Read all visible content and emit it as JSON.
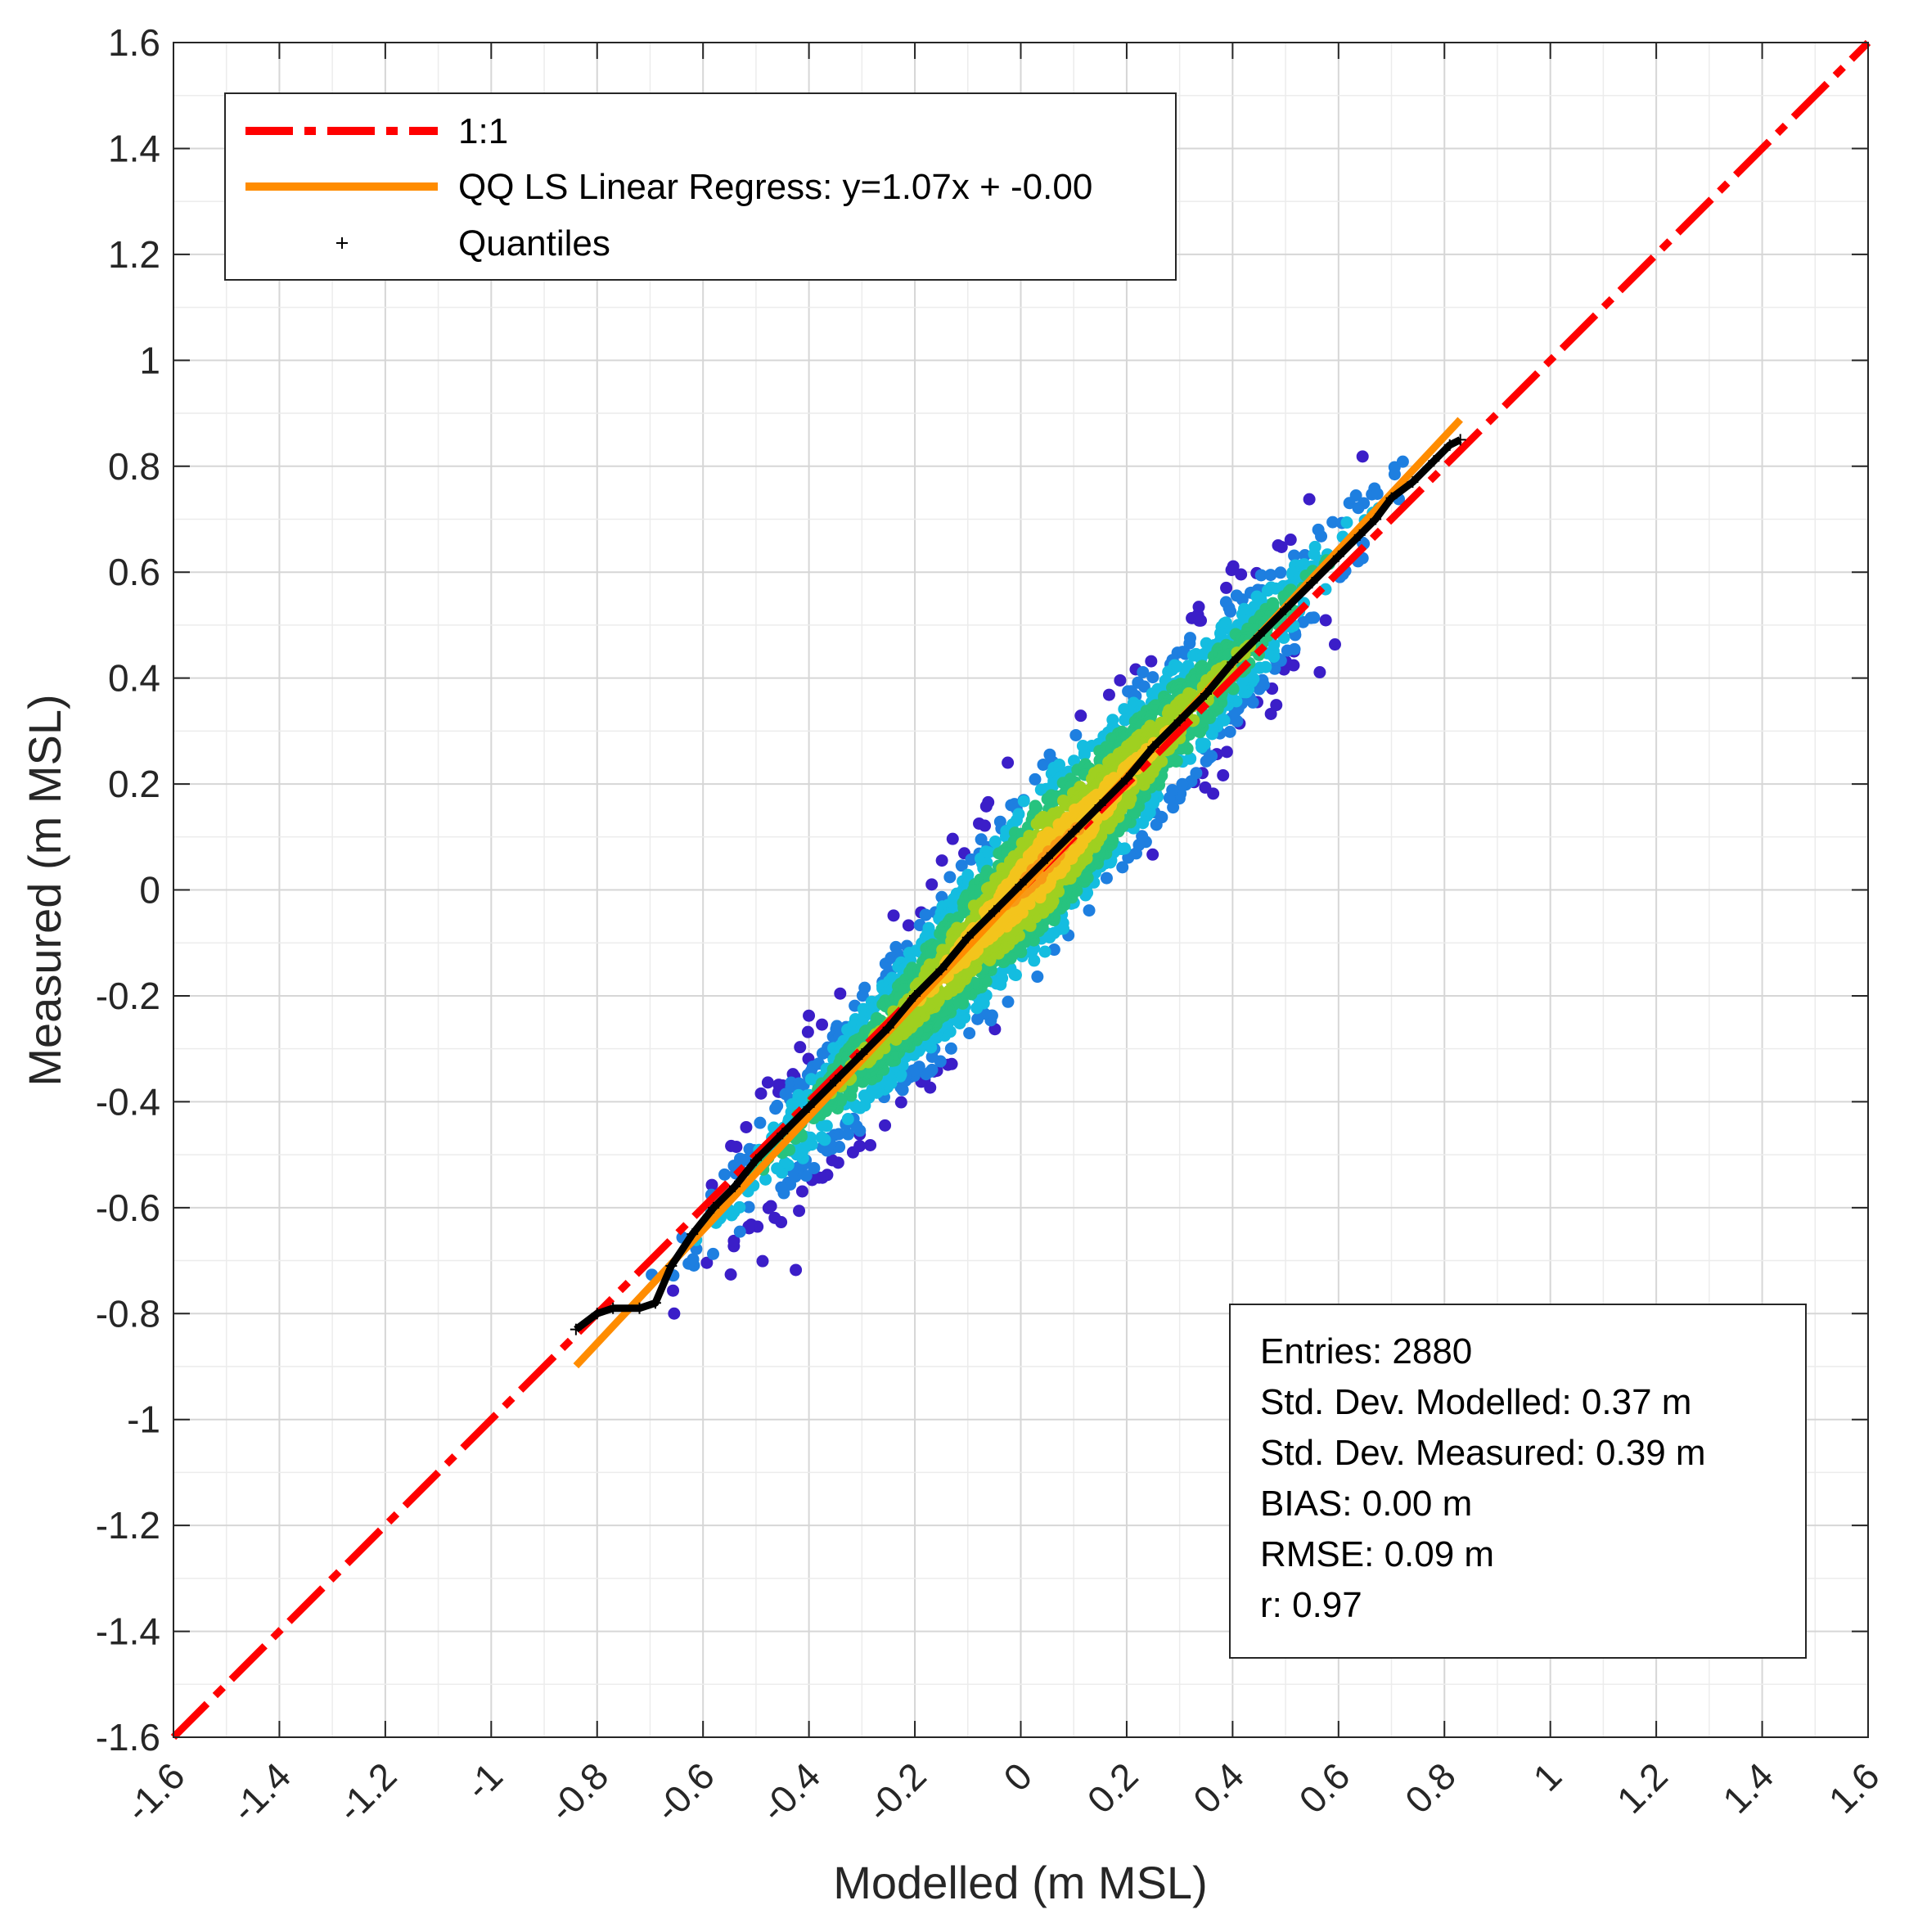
{
  "chart_data": {
    "type": "scatter",
    "xlabel": "Modelled (m MSL)",
    "ylabel": "Measured (m MSL)",
    "xlim": [
      -1.6,
      1.6
    ],
    "ylim": [
      -1.6,
      1.6
    ],
    "x_ticks": [
      "-1.6",
      "-1.4",
      "-1.2",
      "-1",
      "-0.8",
      "-0.6",
      "-0.4",
      "-0.2",
      "0",
      "0.2",
      "0.4",
      "0.6",
      "0.8",
      "1",
      "1.2",
      "1.4",
      "1.6"
    ],
    "y_ticks": [
      "1.6",
      "1.4",
      "1.2",
      "1",
      "0.8",
      "0.6",
      "0.4",
      "0.2",
      "0",
      "-0.2",
      "-0.4",
      "-0.6",
      "-0.8",
      "-1",
      "-1.2",
      "-1.4",
      "-1.6"
    ],
    "x_tick_values": [
      -1.6,
      -1.4,
      -1.2,
      -1,
      -0.8,
      -0.6,
      -0.4,
      -0.2,
      0,
      0.2,
      0.4,
      0.6,
      0.8,
      1,
      1.2,
      1.4,
      1.6
    ],
    "y_tick_values": [
      1.6,
      1.4,
      1.2,
      1,
      0.8,
      0.6,
      0.4,
      0.2,
      0,
      -0.2,
      -0.4,
      -0.6,
      -0.8,
      -1,
      -1.2,
      -1.4,
      -1.6
    ],
    "grid": true,
    "legend_position": "top-left",
    "legend": [
      {
        "label": "1:1",
        "color": "#ff0000",
        "style": "dash-dot"
      },
      {
        "label": "QQ LS Linear Regress: y=1.07x + -0.00",
        "color": "#ff8c00",
        "style": "solid"
      },
      {
        "label": "Quantiles",
        "color": "#000000",
        "style": "plus-marker"
      }
    ],
    "one_to_one": {
      "x": [
        -1.6,
        1.6
      ],
      "y": [
        -1.6,
        1.6
      ]
    },
    "regression": {
      "slope": 1.07,
      "intercept": 0.0,
      "x_range": [
        -0.84,
        0.83
      ]
    },
    "quantiles": {
      "x": [
        -0.84,
        -0.8,
        -0.77,
        -0.72,
        -0.69,
        -0.66,
        -0.62,
        -0.58,
        -0.54,
        -0.5,
        -0.45,
        -0.4,
        -0.35,
        -0.3,
        -0.25,
        -0.2,
        -0.15,
        -0.1,
        -0.05,
        0.0,
        0.05,
        0.1,
        0.15,
        0.2,
        0.25,
        0.3,
        0.35,
        0.4,
        0.45,
        0.5,
        0.55,
        0.6,
        0.64,
        0.67,
        0.7,
        0.74,
        0.78,
        0.81,
        0.83
      ],
      "y": [
        -0.83,
        -0.8,
        -0.79,
        -0.79,
        -0.78,
        -0.71,
        -0.65,
        -0.6,
        -0.56,
        -0.51,
        -0.46,
        -0.41,
        -0.36,
        -0.31,
        -0.26,
        -0.2,
        -0.15,
        -0.09,
        -0.04,
        0.01,
        0.06,
        0.11,
        0.16,
        0.21,
        0.27,
        0.32,
        0.37,
        0.43,
        0.48,
        0.53,
        0.58,
        0.63,
        0.67,
        0.7,
        0.74,
        0.77,
        0.81,
        0.84,
        0.85
      ]
    },
    "density_scatter": {
      "n": 2880,
      "slope": 1.07,
      "spread_sd": 0.07,
      "x_range": [
        -0.84,
        0.83
      ],
      "colormap": [
        "#3b1ec8",
        "#1e7fe0",
        "#14bde0",
        "#27c37f",
        "#9fd020",
        "#f3c41c",
        "#f89a16"
      ]
    },
    "annotation": {
      "position": "bottom-right",
      "lines": [
        "Entries: 2880",
        "Std. Dev. Modelled: 0.37 m",
        "Std. Dev. Measured: 0.39 m",
        "BIAS: 0.00 m",
        "RMSE: 0.09 m",
        "r: 0.97"
      ]
    }
  }
}
